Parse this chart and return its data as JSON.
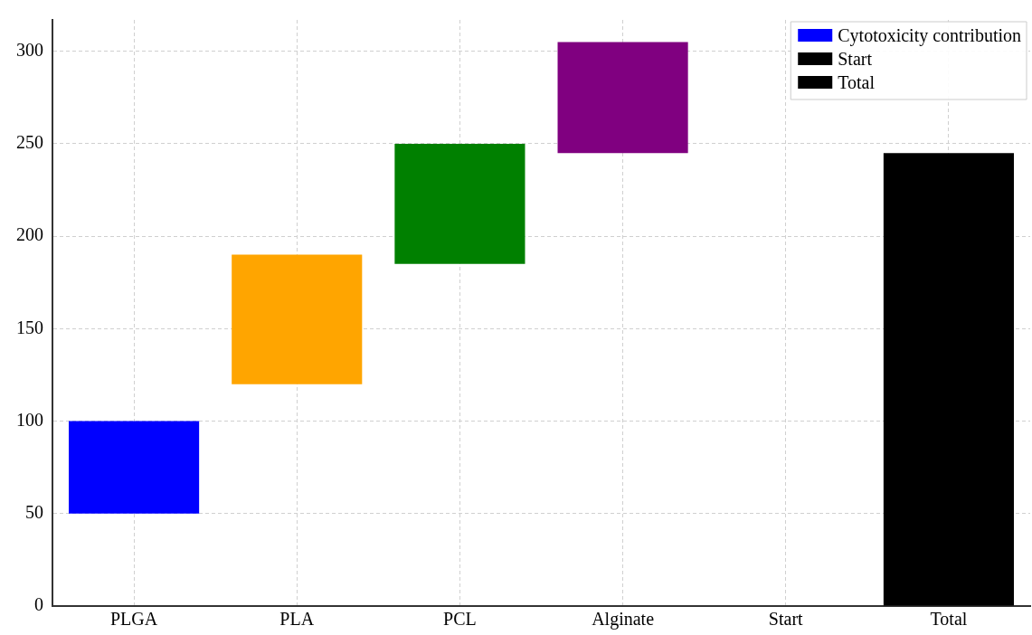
{
  "chart_data": {
    "type": "bar",
    "categories": [
      "PLGA",
      "PLA",
      "PCL",
      "Alginate",
      "Start",
      "Total"
    ],
    "series": [
      {
        "name": "Cytotoxicity contribution",
        "colors": [
          "#0000ff",
          "#ffa500",
          "#008000",
          "#800080",
          null,
          null
        ],
        "values": [
          50,
          70,
          65,
          60,
          null,
          null
        ],
        "base": [
          50,
          120,
          185,
          245,
          null,
          null
        ]
      },
      {
        "name": "Start",
        "color": "#000000",
        "values": [
          null,
          null,
          null,
          null,
          0,
          null
        ]
      },
      {
        "name": "Total",
        "color": "#000000",
        "values": [
          null,
          null,
          null,
          null,
          null,
          245
        ],
        "base": [
          null,
          null,
          null,
          null,
          null,
          0
        ]
      }
    ],
    "ylim": [
      0,
      317
    ],
    "yticks": [
      0,
      50,
      100,
      150,
      200,
      250,
      300
    ],
    "grid": true,
    "legend": "top right"
  }
}
